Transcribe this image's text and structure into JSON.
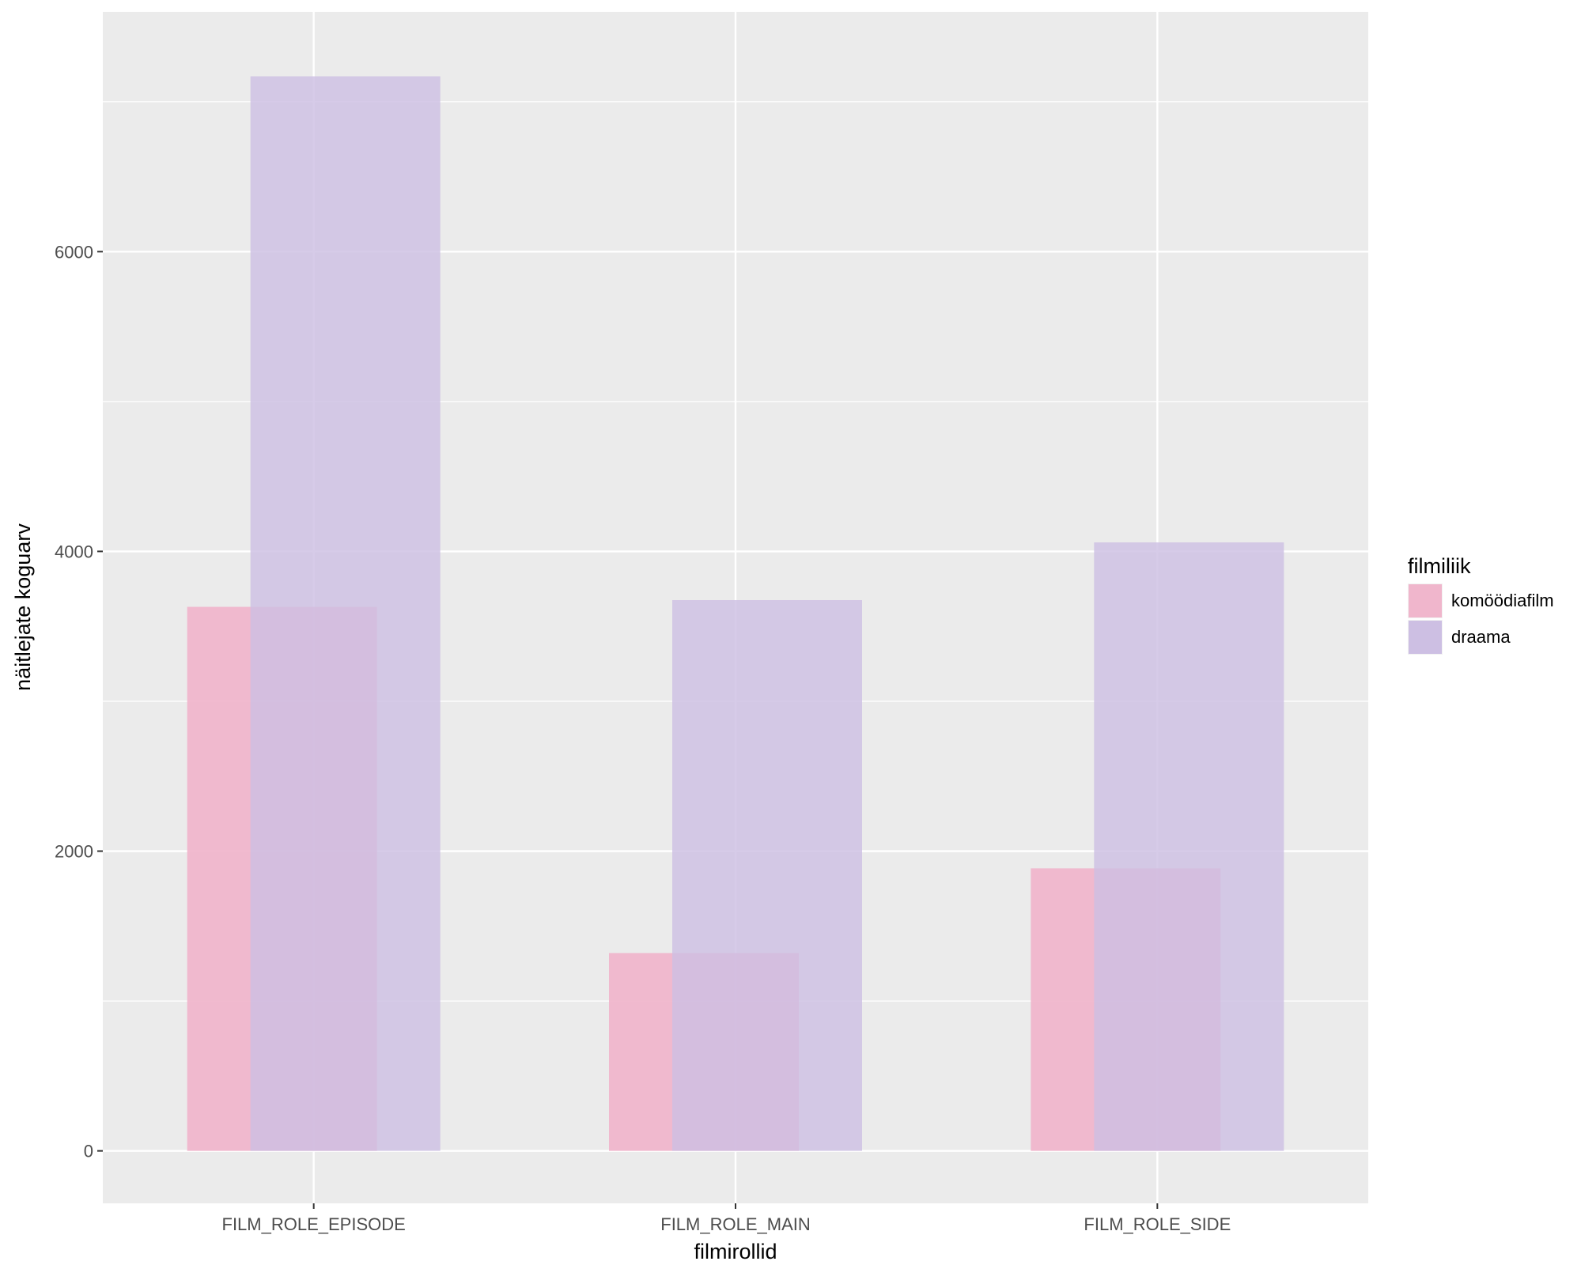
{
  "chart_data": {
    "type": "bar",
    "title": "",
    "xlabel": "filmirollid",
    "ylabel": "näitlejate koguarv",
    "categories": [
      "FILM_ROLE_EPISODE",
      "FILM_ROLE_MAIN",
      "FILM_ROLE_SIDE"
    ],
    "series": [
      {
        "name": "komöödiafilm",
        "values": [
          3630,
          1320,
          1885
        ],
        "color": "#f0b6cc"
      },
      {
        "name": "draama",
        "values": [
          7170,
          3675,
          4060
        ],
        "color": "#cdbfe3"
      }
    ],
    "ylim": [
      -350,
      7600
    ],
    "yticks": [
      0,
      2000,
      4000,
      6000
    ],
    "grid": true,
    "legend": {
      "title": "filmiliik",
      "position": "right"
    },
    "panel_color": "#ebebeb",
    "overlap": true
  }
}
